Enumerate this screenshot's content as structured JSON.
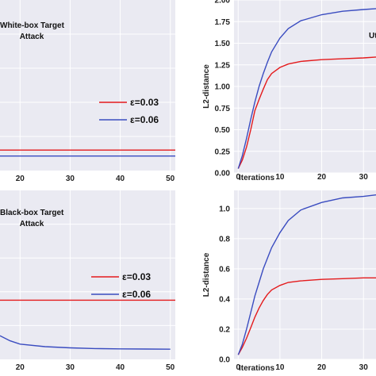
{
  "colors": {
    "red": "#e41a1c",
    "blue": "#3a4cc0",
    "panel_bg": "#eaeaf2",
    "grid": "#ffffff"
  },
  "chart_data": [
    {
      "type": "line",
      "panel": "top-left",
      "annotation": [
        "White-box Target",
        "Attack"
      ],
      "xlabel": "",
      "ylabel": "",
      "x_ticks": [
        20,
        30,
        40,
        50
      ],
      "xlim": [
        16,
        51
      ],
      "ylim": [
        0,
        1
      ],
      "legend": "right",
      "grid": true,
      "series": [
        {
          "name": "ε=0.03",
          "color": "red",
          "x": [
            16,
            51
          ],
          "y": [
            0.12,
            0.12
          ]
        },
        {
          "name": "ε=0.06",
          "color": "blue",
          "x": [
            16,
            51
          ],
          "y": [
            0.085,
            0.085
          ]
        }
      ]
    },
    {
      "type": "line",
      "panel": "top-right",
      "annotation": [
        "Ut"
      ],
      "xlabel": "Iterations",
      "ylabel": "L2-distance",
      "x_ticks": [
        0,
        10,
        20,
        30
      ],
      "y_ticks": [
        "0.00",
        "0.25",
        "0.50",
        "0.75",
        "1.00",
        "1.25",
        "1.50",
        "1.75",
        "2.00"
      ],
      "xlim": [
        -1,
        33
      ],
      "ylim": [
        0,
        2.0
      ],
      "grid": true,
      "series": [
        {
          "color": "red",
          "x": [
            0,
            1,
            2,
            3,
            4,
            5,
            6,
            7,
            8,
            10,
            12,
            15,
            20,
            25,
            30,
            33
          ],
          "y": [
            0.05,
            0.15,
            0.3,
            0.5,
            0.72,
            0.85,
            0.97,
            1.08,
            1.15,
            1.22,
            1.26,
            1.29,
            1.31,
            1.32,
            1.33,
            1.34
          ]
        },
        {
          "color": "blue",
          "x": [
            0,
            1,
            2,
            3,
            4,
            5,
            6,
            7,
            8,
            10,
            12,
            15,
            20,
            25,
            30,
            33
          ],
          "y": [
            0.05,
            0.2,
            0.4,
            0.62,
            0.82,
            1.0,
            1.15,
            1.28,
            1.4,
            1.56,
            1.67,
            1.76,
            1.83,
            1.87,
            1.89,
            1.9
          ]
        }
      ]
    },
    {
      "type": "line",
      "panel": "bottom-left",
      "annotation": [
        "Black-box Target",
        "Attack"
      ],
      "xlabel": "",
      "ylabel": "",
      "x_ticks": [
        20,
        30,
        40,
        50
      ],
      "xlim": [
        16,
        51
      ],
      "ylim": [
        0,
        1
      ],
      "legend": "right",
      "grid": true,
      "series": [
        {
          "name": "ε=0.03",
          "color": "red",
          "x": [
            16,
            51
          ],
          "y": [
            0.35,
            0.35
          ]
        },
        {
          "name": "ε=0.06",
          "color": "blue",
          "x": [
            16,
            18,
            20,
            25,
            30,
            35,
            40,
            45,
            50
          ],
          "y": [
            0.14,
            0.11,
            0.09,
            0.075,
            0.068,
            0.064,
            0.062,
            0.061,
            0.06
          ]
        }
      ]
    },
    {
      "type": "line",
      "panel": "bottom-right",
      "annotation": [],
      "xlabel": "Iterations",
      "ylabel": "L2-distance",
      "x_ticks": [
        0,
        10,
        20,
        30
      ],
      "y_ticks": [
        "0.0",
        "0.2",
        "0.4",
        "0.6",
        "0.8",
        "1.0"
      ],
      "xlim": [
        -1,
        33
      ],
      "ylim": [
        0,
        1.12
      ],
      "grid": true,
      "series": [
        {
          "color": "red",
          "x": [
            0,
            1,
            2,
            3,
            4,
            5,
            6,
            7,
            8,
            10,
            12,
            15,
            20,
            25,
            30,
            33
          ],
          "y": [
            0.03,
            0.08,
            0.14,
            0.21,
            0.28,
            0.34,
            0.39,
            0.43,
            0.46,
            0.49,
            0.51,
            0.52,
            0.53,
            0.535,
            0.54,
            0.54
          ]
        },
        {
          "color": "blue",
          "x": [
            0,
            1,
            2,
            3,
            4,
            5,
            6,
            7,
            8,
            10,
            12,
            15,
            20,
            25,
            30,
            33
          ],
          "y": [
            0.03,
            0.1,
            0.2,
            0.31,
            0.42,
            0.51,
            0.6,
            0.67,
            0.74,
            0.84,
            0.92,
            0.99,
            1.04,
            1.07,
            1.08,
            1.09
          ]
        }
      ]
    }
  ]
}
